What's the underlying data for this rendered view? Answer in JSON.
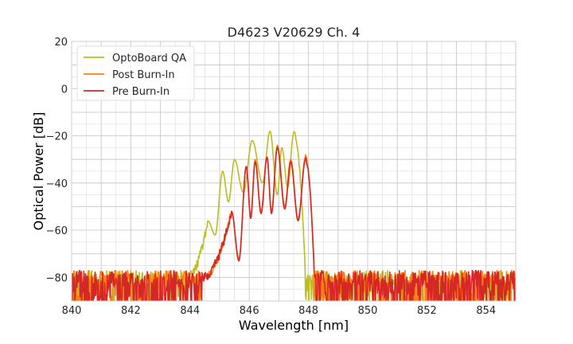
{
  "chart_data": {
    "type": "line",
    "title": "D4623 V20629 Ch. 4",
    "xlabel": "Wavelength [nm]",
    "ylabel": "Optical Power [dB]",
    "xlim": [
      840,
      855
    ],
    "ylim": [
      -90,
      20
    ],
    "xticks": [
      "840",
      "842",
      "844",
      "846",
      "848",
      "850",
      "852",
      "854"
    ],
    "yticks": [
      "20",
      "0",
      "−20",
      "−40",
      "−60",
      "−80"
    ],
    "grid": true,
    "legend_position": "top-left",
    "noise_floor_db": -80,
    "series": [
      {
        "name": "OptoBoard QA",
        "color": "#bcbd22",
        "peaks": [
          {
            "x": 844.6,
            "y": -56
          },
          {
            "x": 845.1,
            "y": -35
          },
          {
            "x": 845.5,
            "y": -30
          },
          {
            "x": 846.1,
            "y": -22
          },
          {
            "x": 846.7,
            "y": -18
          },
          {
            "x": 847.1,
            "y": -25
          },
          {
            "x": 847.5,
            "y": -19
          }
        ],
        "valleys": [
          {
            "x": 844.85,
            "y": -62
          },
          {
            "x": 845.3,
            "y": -48
          },
          {
            "x": 845.8,
            "y": -44
          },
          {
            "x": 846.45,
            "y": -40
          },
          {
            "x": 846.95,
            "y": -45
          },
          {
            "x": 847.3,
            "y": -42
          }
        ],
        "band_edges": [
          843.9,
          847.9
        ]
      },
      {
        "name": "Post Burn-In",
        "color": "#ff7f0e",
        "peaks": [
          {
            "x": 845.4,
            "y": -52
          },
          {
            "x": 845.9,
            "y": -33
          },
          {
            "x": 846.2,
            "y": -30
          },
          {
            "x": 846.6,
            "y": -29
          },
          {
            "x": 846.95,
            "y": -24
          },
          {
            "x": 847.4,
            "y": -30
          },
          {
            "x": 847.9,
            "y": -29
          }
        ],
        "valleys": [
          {
            "x": 845.65,
            "y": -72
          },
          {
            "x": 846.05,
            "y": -54
          },
          {
            "x": 846.4,
            "y": -52
          },
          {
            "x": 846.75,
            "y": -52
          },
          {
            "x": 847.2,
            "y": -50
          },
          {
            "x": 847.65,
            "y": -55
          }
        ],
        "band_edges": [
          844.4,
          848.2
        ]
      },
      {
        "name": "Pre Burn-In",
        "color": "#d62728",
        "peaks": [
          {
            "x": 845.4,
            "y": -52
          },
          {
            "x": 845.9,
            "y": -33
          },
          {
            "x": 846.2,
            "y": -31
          },
          {
            "x": 846.6,
            "y": -29
          },
          {
            "x": 846.95,
            "y": -25
          },
          {
            "x": 847.4,
            "y": -31
          },
          {
            "x": 847.9,
            "y": -30
          }
        ],
        "valleys": [
          {
            "x": 845.65,
            "y": -73
          },
          {
            "x": 846.05,
            "y": -55
          },
          {
            "x": 846.4,
            "y": -53
          },
          {
            "x": 846.75,
            "y": -53
          },
          {
            "x": 847.2,
            "y": -51
          },
          {
            "x": 847.65,
            "y": -56
          }
        ],
        "band_edges": [
          844.4,
          848.2
        ]
      }
    ]
  }
}
